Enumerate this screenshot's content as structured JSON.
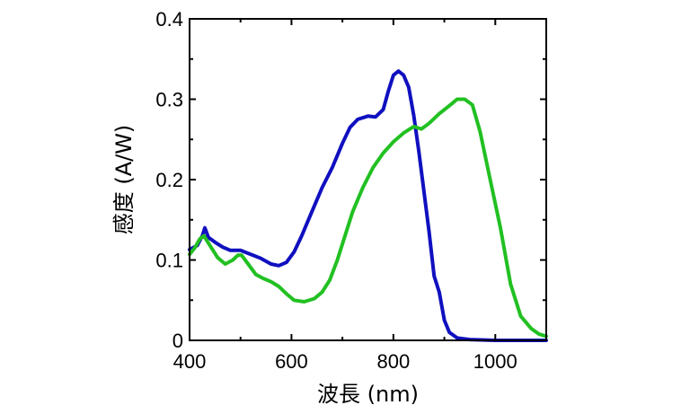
{
  "chart_data": {
    "type": "line",
    "xlabel": "波長 (nm)",
    "ylabel": "感度 (A/W)",
    "xlim": [
      400,
      1100
    ],
    "ylim": [
      0,
      0.4
    ],
    "x_ticks": [
      400,
      600,
      800,
      1000
    ],
    "x_tick_labels": [
      "400",
      "600",
      "800",
      "1000"
    ],
    "y_ticks": [
      0,
      0.1,
      0.2,
      0.3,
      0.4
    ],
    "y_tick_labels": [
      "0",
      "0.1",
      "0.2",
      "0.3",
      "0.4"
    ],
    "grid": false,
    "series": [
      {
        "color": "#1010c0",
        "points": [
          [
            400,
            0.113
          ],
          [
            415,
            0.118
          ],
          [
            425,
            0.13
          ],
          [
            430,
            0.14
          ],
          [
            437,
            0.128
          ],
          [
            450,
            0.122
          ],
          [
            465,
            0.116
          ],
          [
            480,
            0.112
          ],
          [
            500,
            0.112
          ],
          [
            520,
            0.107
          ],
          [
            540,
            0.102
          ],
          [
            560,
            0.095
          ],
          [
            575,
            0.093
          ],
          [
            590,
            0.097
          ],
          [
            605,
            0.11
          ],
          [
            620,
            0.13
          ],
          [
            640,
            0.16
          ],
          [
            660,
            0.19
          ],
          [
            680,
            0.215
          ],
          [
            700,
            0.245
          ],
          [
            715,
            0.265
          ],
          [
            730,
            0.275
          ],
          [
            750,
            0.279
          ],
          [
            765,
            0.278
          ],
          [
            780,
            0.287
          ],
          [
            790,
            0.31
          ],
          [
            800,
            0.33
          ],
          [
            810,
            0.335
          ],
          [
            820,
            0.33
          ],
          [
            830,
            0.315
          ],
          [
            840,
            0.28
          ],
          [
            850,
            0.235
          ],
          [
            860,
            0.185
          ],
          [
            870,
            0.135
          ],
          [
            880,
            0.08
          ],
          [
            890,
            0.06
          ],
          [
            900,
            0.025
          ],
          [
            910,
            0.01
          ],
          [
            925,
            0.003
          ],
          [
            950,
            0.001
          ],
          [
            1000,
            0.0
          ],
          [
            1100,
            0.0
          ]
        ]
      },
      {
        "color": "#22c022",
        "points": [
          [
            400,
            0.107
          ],
          [
            410,
            0.115
          ],
          [
            420,
            0.126
          ],
          [
            428,
            0.13
          ],
          [
            440,
            0.118
          ],
          [
            455,
            0.103
          ],
          [
            470,
            0.095
          ],
          [
            485,
            0.1
          ],
          [
            495,
            0.106
          ],
          [
            502,
            0.106
          ],
          [
            515,
            0.095
          ],
          [
            530,
            0.082
          ],
          [
            545,
            0.077
          ],
          [
            560,
            0.073
          ],
          [
            575,
            0.067
          ],
          [
            590,
            0.058
          ],
          [
            605,
            0.05
          ],
          [
            625,
            0.048
          ],
          [
            645,
            0.052
          ],
          [
            660,
            0.06
          ],
          [
            675,
            0.075
          ],
          [
            690,
            0.1
          ],
          [
            705,
            0.13
          ],
          [
            720,
            0.16
          ],
          [
            740,
            0.19
          ],
          [
            760,
            0.215
          ],
          [
            780,
            0.233
          ],
          [
            800,
            0.247
          ],
          [
            820,
            0.258
          ],
          [
            840,
            0.266
          ],
          [
            855,
            0.263
          ],
          [
            870,
            0.27
          ],
          [
            890,
            0.282
          ],
          [
            910,
            0.292
          ],
          [
            925,
            0.3
          ],
          [
            940,
            0.3
          ],
          [
            955,
            0.293
          ],
          [
            970,
            0.26
          ],
          [
            990,
            0.2
          ],
          [
            1010,
            0.14
          ],
          [
            1030,
            0.07
          ],
          [
            1050,
            0.03
          ],
          [
            1070,
            0.015
          ],
          [
            1085,
            0.008
          ],
          [
            1100,
            0.005
          ]
        ]
      }
    ]
  }
}
